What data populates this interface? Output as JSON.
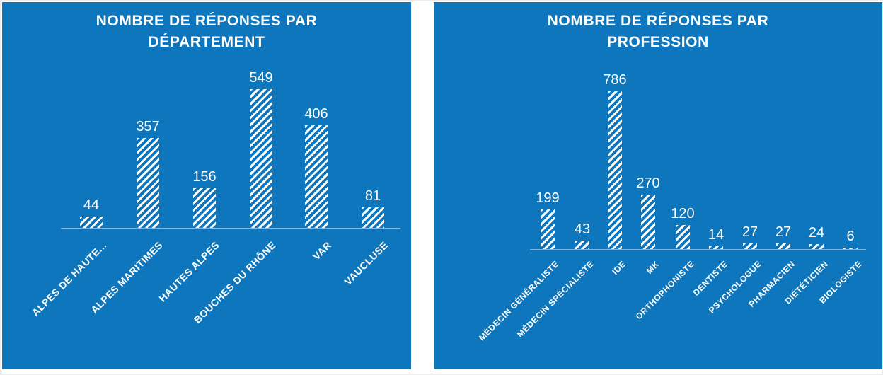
{
  "colors": {
    "panel_blue": "#0e76bc",
    "axis_line": "#7fb8e6",
    "text": "#ffffff"
  },
  "chart_data": [
    {
      "type": "bar",
      "title": "NOMBRE DE RÉPONSES PAR DÉPARTEMENT",
      "categories": [
        "ALPES DE HAUTE...",
        "ALPES MARITIMES",
        "HAUTES ALPES",
        "BOUCHES DU RHÔNE",
        "VAR",
        "VAUCLUSE"
      ],
      "values": [
        44,
        357,
        156,
        549,
        406,
        81
      ],
      "value_labels_shown": true,
      "xlabel": "",
      "ylabel": "",
      "ylim": [
        0,
        600
      ],
      "grid": "off",
      "legend": "none",
      "bar_fill": "white diagonal hatch on blue"
    },
    {
      "type": "bar",
      "title": "NOMBRE DE RÉPONSES PAR PROFESSION",
      "categories": [
        "MÉDECIN GÉNÉRALISTE",
        "MÉDECIN SPÉCIALISTE",
        "IDE",
        "MK",
        "ORTHOPHONISTE",
        "DENTISTE",
        "PSYCHOLOGUE",
        "PHARMACIEN",
        "DIÉTÉTICIEN",
        "BIOLOGISTE"
      ],
      "values": [
        199,
        43,
        786,
        270,
        120,
        14,
        27,
        27,
        24,
        6
      ],
      "value_labels_shown": true,
      "xlabel": "",
      "ylabel": "",
      "ylim": [
        0,
        800
      ],
      "grid": "off",
      "legend": "none",
      "bar_fill": "white diagonal hatch on blue"
    }
  ]
}
